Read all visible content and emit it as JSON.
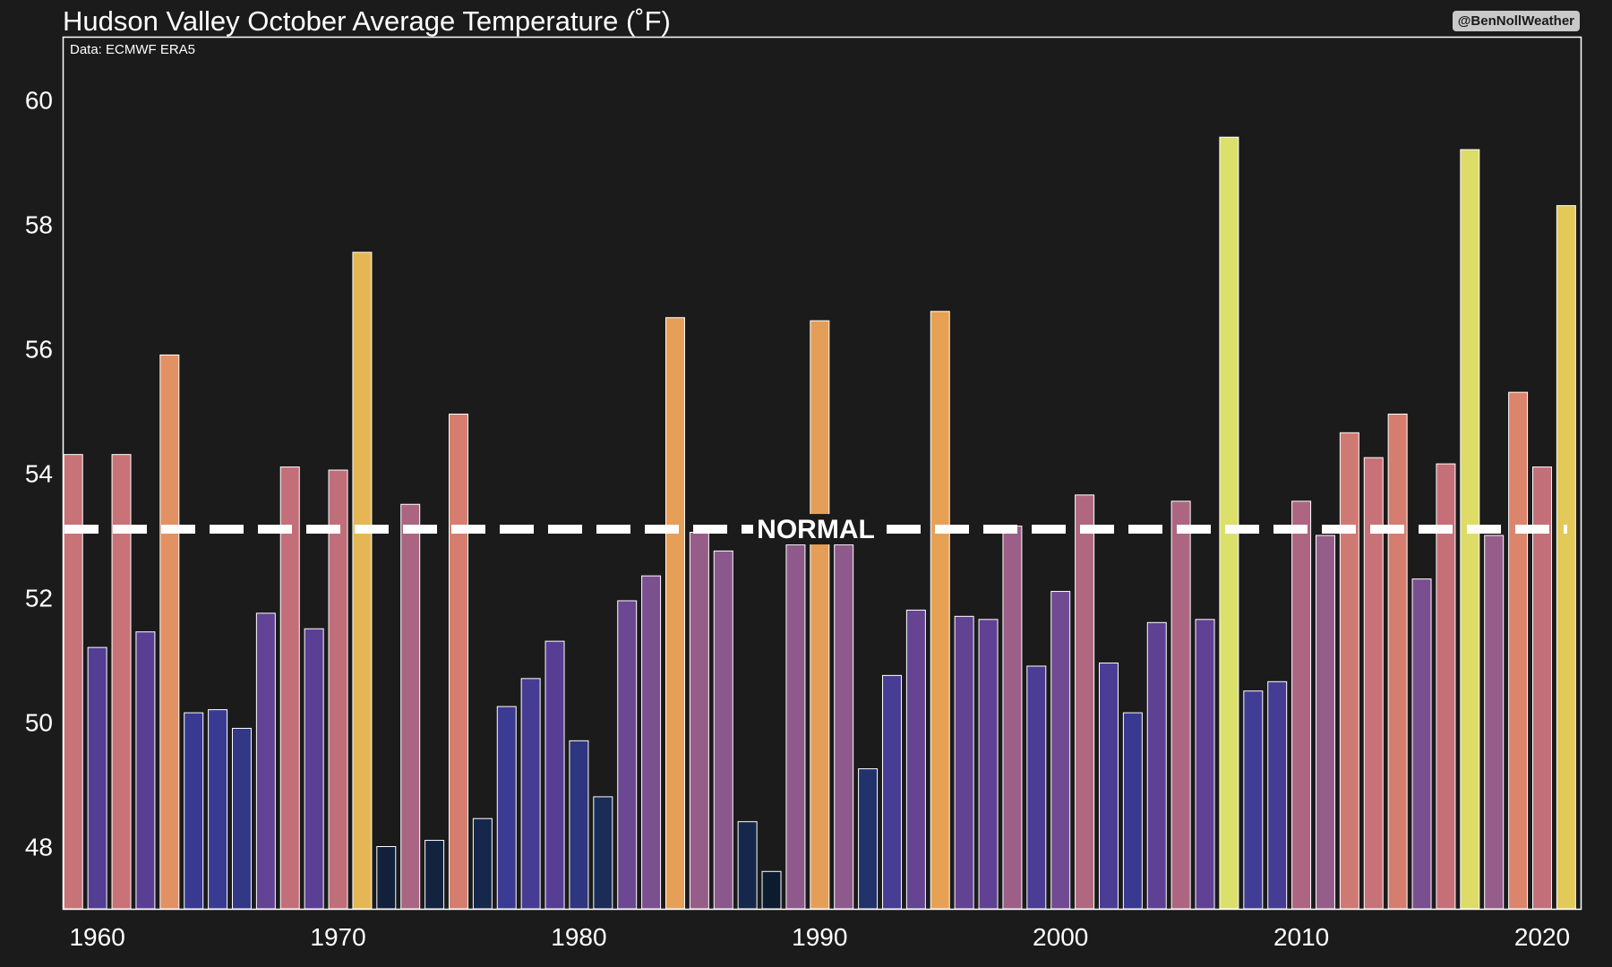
{
  "header": {
    "title": "Hudson Valley October Average Temperature (˚F)",
    "credit": "@BenNollWeather",
    "source": "Data: ECMWF ERA5"
  },
  "chart_data": {
    "type": "bar",
    "title": "Hudson Valley October Average Temperature (˚F)",
    "xlabel": "",
    "ylabel": "",
    "ylim": [
      47,
      61
    ],
    "xlim": [
      1958.6,
      2021.6
    ],
    "grid": false,
    "legend": "none",
    "x_ticks": [
      1960,
      1970,
      1980,
      1990,
      2000,
      2010,
      2020
    ],
    "y_ticks": [
      48,
      50,
      52,
      54,
      56,
      58,
      60
    ],
    "normal_line": {
      "value": 53.1,
      "label": "NORMAL"
    },
    "colormap": [
      "#0d1b2e",
      "#1a2f5c",
      "#3a3b94",
      "#5b3f94",
      "#8e5a8c",
      "#c57079",
      "#e0876a",
      "#e7a552",
      "#e3c456",
      "#dbe06a"
    ],
    "x": [
      1959,
      1960,
      1961,
      1962,
      1963,
      1964,
      1965,
      1966,
      1967,
      1968,
      1969,
      1970,
      1971,
      1972,
      1973,
      1974,
      1975,
      1976,
      1977,
      1978,
      1979,
      1980,
      1981,
      1982,
      1983,
      1984,
      1985,
      1986,
      1987,
      1988,
      1989,
      1990,
      1991,
      1992,
      1993,
      1994,
      1995,
      1996,
      1997,
      1998,
      1999,
      2000,
      2001,
      2002,
      2003,
      2004,
      2005,
      2006,
      2007,
      2008,
      2009,
      2010,
      2011,
      2012,
      2013,
      2014,
      2015,
      2016,
      2017,
      2018,
      2019,
      2020,
      2021
    ],
    "values": [
      54.3,
      51.2,
      54.3,
      51.45,
      55.9,
      50.15,
      50.2,
      49.9,
      51.75,
      54.1,
      51.5,
      54.05,
      57.55,
      48.0,
      53.5,
      48.1,
      54.95,
      48.45,
      50.25,
      50.7,
      51.3,
      49.7,
      48.8,
      51.95,
      52.35,
      56.5,
      53.05,
      52.75,
      48.4,
      47.6,
      52.85,
      56.45,
      52.85,
      49.25,
      50.75,
      51.8,
      56.6,
      51.7,
      51.65,
      53.15,
      50.9,
      52.1,
      53.65,
      50.95,
      50.15,
      51.6,
      53.55,
      51.65,
      59.4,
      50.5,
      50.65,
      53.55,
      53.0,
      54.65,
      54.25,
      54.95,
      52.3,
      54.15,
      59.2,
      53.0,
      55.3,
      54.1,
      58.3
    ]
  }
}
